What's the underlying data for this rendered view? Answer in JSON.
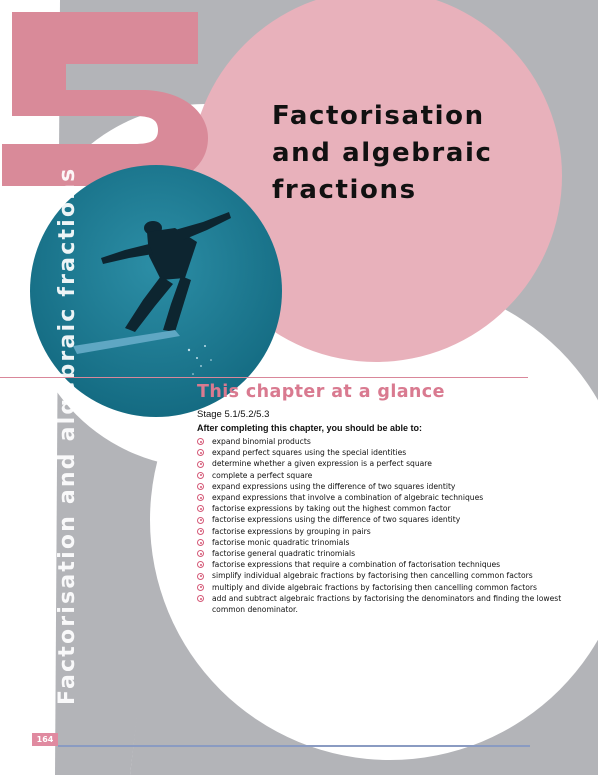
{
  "chapter": {
    "number": "5",
    "title_lines": [
      "Factorisation",
      "and algebraic",
      "fractions"
    ],
    "side_title": "Factorisation and algebraic fractions"
  },
  "photo": {
    "subject": "snowboarder mid-jump against blue sky",
    "tint": "#1a7890"
  },
  "glance": {
    "heading": "This chapter at a glance",
    "stage": "Stage 5.1/5.2/5.3",
    "intro": "After completing this chapter, you should be able to:",
    "objectives": [
      "expand binomial products",
      "expand perfect squares using the special identities",
      "determine whether a given expression is a perfect square",
      "complete a perfect square",
      "expand expressions using the difference of two squares identity",
      "expand expressions that involve a combination of algebraic techniques",
      "factorise expressions by taking out the highest common factor",
      "factorise expressions using the difference of two squares identity",
      "factorise expressions by grouping in pairs",
      "factorise monic quadratic trinomials",
      "factorise general quadratic trinomials",
      "factorise expressions that require a combination of factorisation techniques",
      "simplify individual algebraic fractions by factorising then cancelling common factors",
      "multiply and divide algebraic fractions by factorising then cancelling common factors",
      "add and subtract algebraic fractions by factorising the denominators and finding the lowest common denominator."
    ]
  },
  "page_number": "164",
  "colors": {
    "pink": "#d98a99",
    "light_pink": "#e8b1bb",
    "grey": "#b3b4b8",
    "accent": "#d97a90",
    "bullet": "#d55a78",
    "rule_blue": "#8a9bc2"
  }
}
